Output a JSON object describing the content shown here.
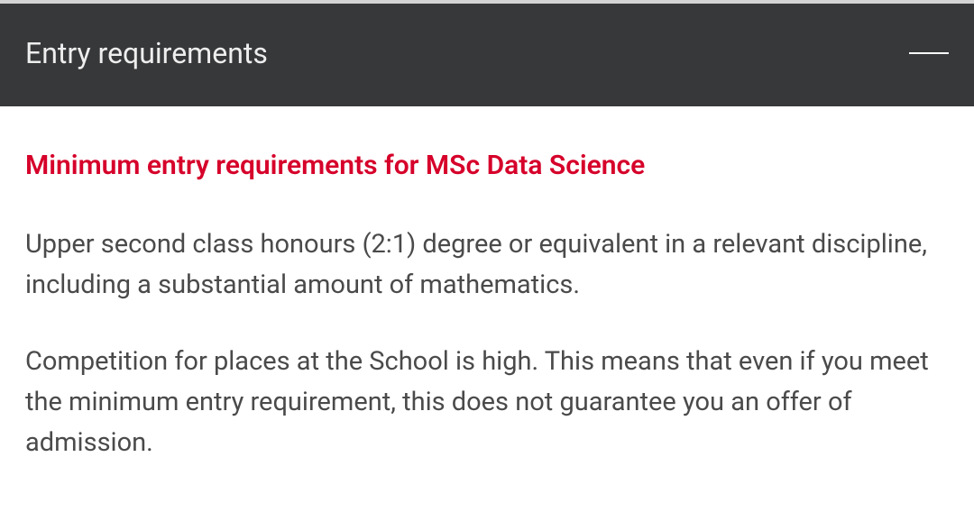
{
  "header": {
    "title": "Entry requirements"
  },
  "content": {
    "subheading": "Minimum entry requirements for MSc Data Science",
    "paragraphs": [
      "Upper second class honours (2:1) degree or equivalent in a relevant discipline, including a substantial amount of mathematics.",
      "Competition for places at the School is high. This means that even if you meet the minimum entry requirement, this does not guarantee you an offer of admission."
    ]
  },
  "colors": {
    "header_bg": "#37383a",
    "header_text": "#ffffff",
    "accent_red": "#d6002a",
    "body_text": "#4a4a4a",
    "background": "#ffffff",
    "top_border": "#d4d4d4"
  },
  "typography": {
    "header_title_size": 32,
    "subheading_size": 30,
    "body_size": 29
  }
}
